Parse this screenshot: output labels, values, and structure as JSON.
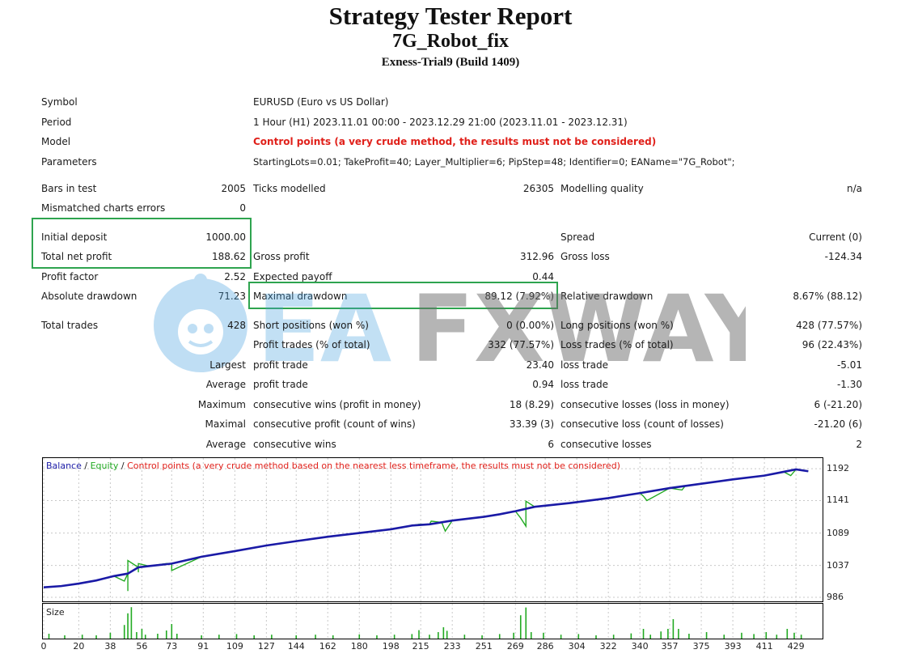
{
  "header": {
    "title": "Strategy Tester Report",
    "subtitle": "7G_Robot_fix",
    "server": "Exness-Trial9 (Build 1409)"
  },
  "info": {
    "symbol_label": "Symbol",
    "symbol_value": "EURUSD (Euro vs US Dollar)",
    "period_label": "Period",
    "period_value": "1 Hour (H1) 2023.11.01 00:00 - 2023.12.29 21:00 (2023.11.01 - 2023.12.31)",
    "model_label": "Model",
    "model_value": "Control points (a very crude method, the results must not be considered)",
    "params_label": "Parameters",
    "params_value": "StartingLots=0.01; TakeProfit=40; Layer_Multiplier=6; PipStep=48; Identifier=0; EAName=\"7G_Robot\";"
  },
  "stats": {
    "bars_label": "Bars in test",
    "bars_value": "2005",
    "ticks_label": "Ticks modelled",
    "ticks_value": "26305",
    "quality_label": "Modelling quality",
    "quality_value": "n/a",
    "mismatch_label": "Mismatched charts errors",
    "mismatch_value": "0",
    "deposit_label": "Initial deposit",
    "deposit_value": "1000.00",
    "spread_label": "Spread",
    "spread_value": "Current (0)",
    "netprofit_label": "Total net profit",
    "netprofit_value": "188.62",
    "grossprofit_label": "Gross profit",
    "grossprofit_value": "312.96",
    "grossloss_label": "Gross loss",
    "grossloss_value": "-124.34",
    "pf_label": "Profit factor",
    "pf_value": "2.52",
    "payoff_label": "Expected payoff",
    "payoff_value": "0.44",
    "absdd_label": "Absolute drawdown",
    "absdd_value": "71.23",
    "maxdd_label": "Maximal drawdown",
    "maxdd_value": "89.12 (7.92%)",
    "reldd_label": "Relative drawdown",
    "reldd_value": "8.67% (88.12)",
    "trades_label": "Total trades",
    "trades_value": "428",
    "short_label": "Short positions (won %)",
    "short_value": "0 (0.00%)",
    "long_label": "Long positions (won %)",
    "long_value": "428 (77.57%)",
    "ptrades_label": "Profit trades (% of total)",
    "ptrades_value": "332 (77.57%)",
    "ltrades_label": "Loss trades (% of total)",
    "ltrades_value": "96 (22.43%)",
    "largest_label": "Largest",
    "lg_profit_label": "profit trade",
    "lg_profit_value": "23.40",
    "lg_loss_label": "loss trade",
    "lg_loss_value": "-5.01",
    "average_label": "Average",
    "av_profit_label": "profit trade",
    "av_profit_value": "0.94",
    "av_loss_label": "loss trade",
    "av_loss_value": "-1.30",
    "maximum_label": "Maximum",
    "mx_wins_label": "consecutive wins (profit in money)",
    "mx_wins_value": "18 (8.29)",
    "mx_losses_label": "consecutive losses (loss in money)",
    "mx_losses_value": "6 (-21.20)",
    "maximal_label": "Maximal",
    "ml_profit_label": "consecutive profit (count of wins)",
    "ml_profit_value": "33.39 (3)",
    "ml_loss_label": "consecutive loss (count of losses)",
    "ml_loss_value": "-21.20 (6)",
    "avg2_label": "Average",
    "ac_wins_label": "consecutive wins",
    "ac_wins_value": "6",
    "ac_losses_label": "consecutive losses",
    "ac_losses_value": "2"
  },
  "watermark": {
    "brand_a": "EA",
    "brand_b": "FXWAY"
  },
  "chart_data": {
    "type": "line",
    "legend": {
      "balance": "Balance",
      "sep1": " / ",
      "equity": "Equity",
      "sep2": " / ",
      "model": "Control points (a very crude method based on the nearest less timeframe, the results must not be considered)"
    },
    "colors": {
      "balance": "#1a1aa6",
      "equity": "#22aa22",
      "model": "#e0201a"
    },
    "y_ticks": [
      "1192",
      "1141",
      "1089",
      "1037",
      "986"
    ],
    "x_ticks": [
      "0",
      "20",
      "38",
      "56",
      "73",
      "91",
      "109",
      "127",
      "144",
      "162",
      "180",
      "198",
      "215",
      "233",
      "251",
      "269",
      "286",
      "304",
      "322",
      "340",
      "357",
      "375",
      "393",
      "411",
      "429"
    ],
    "ylim": [
      986,
      1200
    ],
    "xlim": [
      0,
      440
    ],
    "balance": [
      [
        0,
        1002
      ],
      [
        10,
        1004
      ],
      [
        20,
        1008
      ],
      [
        30,
        1013
      ],
      [
        40,
        1020
      ],
      [
        48,
        1024
      ],
      [
        54,
        1034
      ],
      [
        60,
        1036
      ],
      [
        73,
        1040
      ],
      [
        90,
        1051
      ],
      [
        109,
        1060
      ],
      [
        127,
        1069
      ],
      [
        144,
        1076
      ],
      [
        162,
        1083
      ],
      [
        180,
        1089
      ],
      [
        198,
        1095
      ],
      [
        210,
        1101
      ],
      [
        220,
        1103
      ],
      [
        233,
        1109
      ],
      [
        251,
        1115
      ],
      [
        260,
        1119
      ],
      [
        269,
        1124
      ],
      [
        280,
        1131
      ],
      [
        300,
        1137
      ],
      [
        322,
        1145
      ],
      [
        340,
        1153
      ],
      [
        357,
        1161
      ],
      [
        375,
        1168
      ],
      [
        393,
        1175
      ],
      [
        411,
        1181
      ],
      [
        420,
        1186
      ],
      [
        429,
        1191
      ],
      [
        436,
        1188
      ]
    ],
    "equity_dips": [
      [
        46,
        1012
      ],
      [
        48,
        996
      ],
      [
        54,
        1026
      ],
      [
        70,
        1040
      ],
      [
        73,
        1029
      ],
      [
        214,
        1103
      ],
      [
        227,
        1106
      ],
      [
        229,
        1092
      ],
      [
        272,
        1113
      ],
      [
        275,
        1100
      ],
      [
        280,
        1131
      ],
      [
        342,
        1148
      ],
      [
        344,
        1141
      ],
      [
        364,
        1158
      ],
      [
        422,
        1187
      ],
      [
        426,
        1181
      ]
    ],
    "equity_spikes": [
      [
        48,
        1045
      ],
      [
        54,
        1040
      ],
      [
        221,
        1108
      ],
      [
        275,
        1140
      ],
      [
        366,
        1165
      ]
    ],
    "size_series": {
      "label": "Size",
      "spikes": [
        [
          3,
          0.15
        ],
        [
          12,
          0.1
        ],
        [
          22,
          0.12
        ],
        [
          30,
          0.1
        ],
        [
          38,
          0.18
        ],
        [
          46,
          0.42
        ],
        [
          48,
          0.78
        ],
        [
          50,
          0.97
        ],
        [
          53,
          0.2
        ],
        [
          56,
          0.3
        ],
        [
          58,
          0.12
        ],
        [
          65,
          0.15
        ],
        [
          70,
          0.25
        ],
        [
          73,
          0.45
        ],
        [
          76,
          0.15
        ],
        [
          90,
          0.1
        ],
        [
          100,
          0.12
        ],
        [
          110,
          0.14
        ],
        [
          120,
          0.1
        ],
        [
          130,
          0.12
        ],
        [
          144,
          0.1
        ],
        [
          155,
          0.12
        ],
        [
          165,
          0.1
        ],
        [
          180,
          0.13
        ],
        [
          190,
          0.1
        ],
        [
          200,
          0.12
        ],
        [
          210,
          0.14
        ],
        [
          214,
          0.26
        ],
        [
          220,
          0.12
        ],
        [
          225,
          0.2
        ],
        [
          228,
          0.35
        ],
        [
          230,
          0.24
        ],
        [
          240,
          0.12
        ],
        [
          250,
          0.1
        ],
        [
          260,
          0.14
        ],
        [
          268,
          0.18
        ],
        [
          272,
          0.72
        ],
        [
          275,
          0.96
        ],
        [
          278,
          0.2
        ],
        [
          285,
          0.18
        ],
        [
          295,
          0.12
        ],
        [
          305,
          0.14
        ],
        [
          315,
          0.1
        ],
        [
          325,
          0.12
        ],
        [
          335,
          0.16
        ],
        [
          342,
          0.3
        ],
        [
          346,
          0.12
        ],
        [
          352,
          0.22
        ],
        [
          356,
          0.3
        ],
        [
          359,
          0.6
        ],
        [
          362,
          0.3
        ],
        [
          368,
          0.15
        ],
        [
          378,
          0.2
        ],
        [
          388,
          0.12
        ],
        [
          398,
          0.18
        ],
        [
          405,
          0.14
        ],
        [
          412,
          0.2
        ],
        [
          418,
          0.12
        ],
        [
          424,
          0.3
        ],
        [
          428,
          0.18
        ],
        [
          432,
          0.12
        ]
      ]
    }
  }
}
